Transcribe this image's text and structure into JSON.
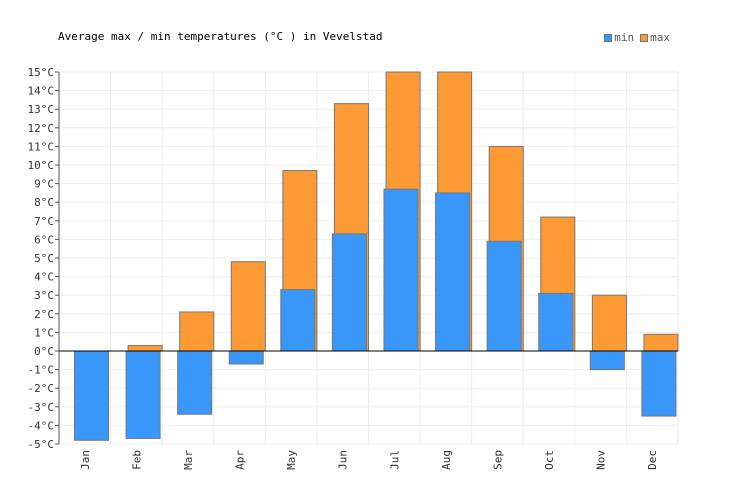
{
  "title": "Average max / min temperatures (°C ) in Vevelstad",
  "legend": [
    {
      "label": "min",
      "color": "#3a97fa"
    },
    {
      "label": "max",
      "color": "#fd9a33"
    }
  ],
  "chart_data": {
    "type": "bar",
    "title": "Average max / min temperatures (°C ) in Vevelstad",
    "xlabel": "",
    "ylabel": "",
    "ylim": [
      -5,
      15
    ],
    "y_tick_step": 1,
    "y_unit": "°C",
    "grid": true,
    "legend_position": "top-right",
    "categories": [
      "Jan",
      "Feb",
      "Mar",
      "Apr",
      "May",
      "Jun",
      "Jul",
      "Aug",
      "Sep",
      "Oct",
      "Nov",
      "Dec"
    ],
    "series": [
      {
        "name": "max",
        "color": "#fd9a33",
        "values": [
          0,
          0.3,
          2.1,
          4.8,
          9.7,
          13.3,
          15,
          15,
          11,
          7.2,
          3,
          0.9
        ]
      },
      {
        "name": "min",
        "color": "#3a97fa",
        "values": [
          -4.8,
          -4.7,
          -3.4,
          -0.7,
          3.3,
          6.3,
          8.7,
          8.5,
          5.9,
          3.1,
          -1,
          -3.5
        ]
      }
    ]
  }
}
